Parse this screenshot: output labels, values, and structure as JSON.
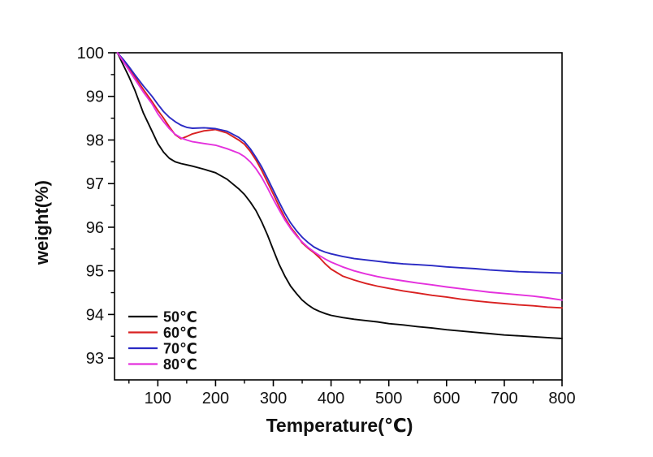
{
  "figure": {
    "background": "#ffffff",
    "frame_color": "#000000",
    "tick_color": "#000000",
    "text_color": "#111111"
  },
  "chart_data": {
    "type": "line",
    "title": "",
    "xlabel": "Temperature(℃)",
    "ylabel": "weight(%)",
    "xlim": [
      25,
      800
    ],
    "ylim": [
      92.5,
      100
    ],
    "x_ticks": [
      100,
      200,
      300,
      400,
      500,
      600,
      700,
      800
    ],
    "x_minor_ticks": [
      50,
      150,
      250,
      350,
      450,
      550,
      650,
      750
    ],
    "y_ticks": [
      93,
      94,
      95,
      96,
      97,
      98,
      99,
      100
    ],
    "y_minor_ticks": [
      93.5,
      94.5,
      95.5,
      96.5,
      97.5,
      98.5,
      99.5
    ],
    "grid": false,
    "frame": true,
    "legend_position": "lower-left",
    "x": [
      30,
      40,
      50,
      60,
      75,
      90,
      100,
      110,
      120,
      130,
      140,
      150,
      160,
      180,
      200,
      220,
      240,
      250,
      260,
      270,
      280,
      290,
      300,
      310,
      320,
      330,
      340,
      350,
      360,
      370,
      380,
      390,
      400,
      420,
      440,
      460,
      480,
      500,
      525,
      550,
      575,
      600,
      625,
      650,
      675,
      700,
      725,
      750,
      775,
      800
    ],
    "series": [
      {
        "name": "50℃",
        "color": "#0a0a0a",
        "values": [
          100,
          99.72,
          99.45,
          99.15,
          98.62,
          98.2,
          97.92,
          97.72,
          97.58,
          97.5,
          97.46,
          97.43,
          97.4,
          97.33,
          97.25,
          97.1,
          96.88,
          96.75,
          96.58,
          96.38,
          96.12,
          95.82,
          95.48,
          95.15,
          94.88,
          94.65,
          94.48,
          94.33,
          94.22,
          94.13,
          94.07,
          94.02,
          93.98,
          93.93,
          93.89,
          93.86,
          93.83,
          93.79,
          93.76,
          93.72,
          93.69,
          93.65,
          93.62,
          93.59,
          93.56,
          93.53,
          93.51,
          93.49,
          93.47,
          93.45
        ]
      },
      {
        "name": "60℃",
        "color": "#d92121",
        "values": [
          100,
          99.82,
          99.64,
          99.45,
          99.16,
          98.88,
          98.68,
          98.5,
          98.3,
          98.12,
          98.03,
          98.08,
          98.14,
          98.21,
          98.24,
          98.16,
          98.0,
          97.9,
          97.74,
          97.54,
          97.3,
          97.03,
          96.76,
          96.48,
          96.22,
          96.0,
          95.83,
          95.64,
          95.52,
          95.42,
          95.3,
          95.16,
          95.04,
          94.88,
          94.79,
          94.71,
          94.65,
          94.6,
          94.54,
          94.49,
          94.44,
          94.4,
          94.35,
          94.31,
          94.28,
          94.25,
          94.22,
          94.2,
          94.17,
          94.15
        ]
      },
      {
        "name": "70℃",
        "color": "#2a2ac4",
        "values": [
          100,
          99.85,
          99.68,
          99.5,
          99.24,
          99.0,
          98.82,
          98.65,
          98.52,
          98.42,
          98.34,
          98.29,
          98.27,
          98.28,
          98.26,
          98.2,
          98.06,
          97.96,
          97.8,
          97.6,
          97.38,
          97.12,
          96.85,
          96.58,
          96.32,
          96.1,
          95.92,
          95.77,
          95.65,
          95.55,
          95.48,
          95.43,
          95.39,
          95.33,
          95.28,
          95.25,
          95.22,
          95.19,
          95.16,
          95.14,
          95.12,
          95.09,
          95.07,
          95.05,
          95.02,
          95.0,
          94.98,
          94.97,
          94.96,
          94.95
        ]
      },
      {
        "name": "80℃",
        "color": "#e431dd",
        "values": [
          100,
          99.8,
          99.6,
          99.4,
          99.1,
          98.83,
          98.6,
          98.42,
          98.26,
          98.13,
          98.05,
          98.0,
          97.96,
          97.92,
          97.88,
          97.8,
          97.7,
          97.62,
          97.5,
          97.34,
          97.14,
          96.9,
          96.64,
          96.4,
          96.17,
          95.97,
          95.8,
          95.66,
          95.54,
          95.44,
          95.35,
          95.27,
          95.2,
          95.09,
          95.0,
          94.93,
          94.87,
          94.82,
          94.77,
          94.72,
          94.68,
          94.63,
          94.59,
          94.55,
          94.51,
          94.48,
          94.45,
          94.42,
          94.38,
          94.33
        ]
      }
    ]
  }
}
